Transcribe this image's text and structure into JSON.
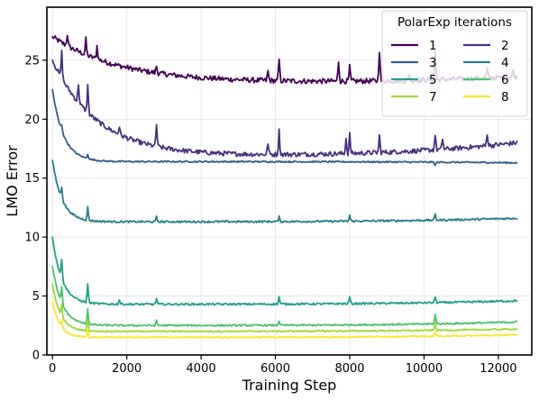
{
  "chart_data": {
    "type": "line",
    "xlabel": "Training Step",
    "ylabel": "LMO Error",
    "xlim": [
      -150,
      12900
    ],
    "ylim": [
      0,
      29.5
    ],
    "xticks": [
      0,
      2000,
      4000,
      6000,
      8000,
      10000,
      12000
    ],
    "yticks": [
      0,
      5,
      10,
      15,
      20,
      25
    ],
    "grid": true,
    "legend": {
      "title": "PolarExp iterations",
      "placement": "top-right",
      "columns": 2
    },
    "series": [
      {
        "name": "1",
        "color": "#440154",
        "start": 27.0,
        "plateau": 23.1,
        "end": 23.6,
        "decay": 1800,
        "noise": 0.22,
        "spikes": [
          [
            400,
            1.0
          ],
          [
            900,
            1.3
          ],
          [
            1200,
            1.1
          ],
          [
            2800,
            0.6
          ],
          [
            5800,
            0.8
          ],
          [
            6100,
            1.8
          ],
          [
            7700,
            1.7
          ],
          [
            8000,
            1.2
          ],
          [
            8800,
            2.6
          ],
          [
            9600,
            0.6
          ],
          [
            10300,
            2.4
          ],
          [
            11700,
            0.8
          ],
          [
            12400,
            0.6
          ]
        ]
      },
      {
        "name": "2",
        "color": "#46327e",
        "start": 25.0,
        "plateau": 16.9,
        "end": 18.0,
        "decay": 1200,
        "noise": 0.2,
        "spikes": [
          [
            250,
            2.2
          ],
          [
            700,
            1.6
          ],
          [
            950,
            2.3
          ],
          [
            1800,
            0.7
          ],
          [
            2800,
            1.9
          ],
          [
            5800,
            1.0
          ],
          [
            6100,
            2.0
          ],
          [
            7900,
            1.3
          ],
          [
            8000,
            1.6
          ],
          [
            8800,
            1.4
          ],
          [
            10300,
            1.3
          ],
          [
            10500,
            0.9
          ],
          [
            11700,
            1.1
          ]
        ]
      },
      {
        "name": "3",
        "color": "#365c8d",
        "start": 22.5,
        "plateau": 16.4,
        "end": 16.3,
        "decay": 300,
        "noise": 0.06,
        "spikes": [
          [
            250,
            0.5
          ],
          [
            950,
            0.4
          ],
          [
            10300,
            -0.3
          ]
        ]
      },
      {
        "name": "4",
        "color": "#277f8e",
        "start": 16.5,
        "plateau": 11.3,
        "end": 11.6,
        "decay": 260,
        "noise": 0.08,
        "spikes": [
          [
            250,
            1.0
          ],
          [
            950,
            1.1
          ],
          [
            2800,
            0.4
          ],
          [
            6100,
            0.4
          ],
          [
            8000,
            0.5
          ],
          [
            10300,
            0.5
          ]
        ]
      },
      {
        "name": "5",
        "color": "#1fa187",
        "start": 10.0,
        "plateau": 4.3,
        "end": 4.6,
        "decay": 260,
        "noise": 0.08,
        "spikes": [
          [
            250,
            1.7
          ],
          [
            950,
            1.6
          ],
          [
            1800,
            0.4
          ],
          [
            2800,
            0.5
          ],
          [
            6100,
            0.6
          ],
          [
            8000,
            0.6
          ],
          [
            10300,
            0.5
          ]
        ]
      },
      {
        "name": "6",
        "color": "#4ac16d",
        "start": 7.5,
        "plateau": 2.5,
        "end": 2.8,
        "decay": 260,
        "noise": 0.07,
        "spikes": [
          [
            250,
            1.4
          ],
          [
            950,
            1.3
          ],
          [
            2800,
            0.4
          ],
          [
            6100,
            0.4
          ],
          [
            10300,
            0.8
          ]
        ]
      },
      {
        "name": "7",
        "color": "#a0da39",
        "start": 6.0,
        "plateau": 2.0,
        "end": 2.2,
        "decay": 220,
        "noise": 0.06,
        "spikes": [
          [
            250,
            1.0
          ],
          [
            950,
            1.0
          ],
          [
            10300,
            0.6
          ]
        ]
      },
      {
        "name": "8",
        "color": "#fde725",
        "start": 4.5,
        "plateau": 1.5,
        "end": 1.7,
        "decay": 200,
        "noise": 0.05,
        "spikes": [
          [
            250,
            0.6
          ],
          [
            950,
            0.6
          ],
          [
            10300,
            0.4
          ]
        ]
      }
    ]
  }
}
